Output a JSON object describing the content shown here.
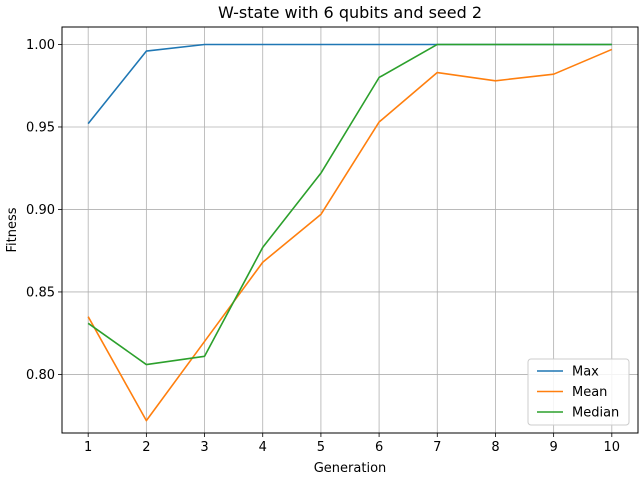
{
  "chart_data": {
    "type": "line",
    "title": "W-state with 6 qubits and seed 2",
    "xlabel": "Generation",
    "ylabel": "Fitness",
    "x": [
      1,
      2,
      3,
      4,
      5,
      6,
      7,
      8,
      9,
      10
    ],
    "xticks": [
      "1",
      "2",
      "3",
      "4",
      "5",
      "6",
      "7",
      "8",
      "9",
      "10"
    ],
    "yticks": [
      "0.80",
      "0.85",
      "0.90",
      "0.95",
      "1.00"
    ],
    "xlim": [
      0.55,
      10.45
    ],
    "ylim": [
      0.7645,
      1.0106
    ],
    "grid": true,
    "legend_position": "lower-right",
    "series": [
      {
        "name": "Max",
        "color": "#1f77b4",
        "values": [
          0.952,
          0.996,
          1.0,
          1.0,
          1.0,
          1.0,
          1.0,
          1.0,
          1.0,
          1.0
        ]
      },
      {
        "name": "Mean",
        "color": "#ff7f0e",
        "values": [
          0.835,
          0.772,
          0.82,
          0.868,
          0.897,
          0.953,
          0.983,
          0.978,
          0.982,
          0.997
        ]
      },
      {
        "name": "Median",
        "color": "#2ca02c",
        "values": [
          0.831,
          0.806,
          0.811,
          0.877,
          0.922,
          0.98,
          1.0,
          1.0,
          1.0,
          1.0
        ]
      }
    ]
  }
}
